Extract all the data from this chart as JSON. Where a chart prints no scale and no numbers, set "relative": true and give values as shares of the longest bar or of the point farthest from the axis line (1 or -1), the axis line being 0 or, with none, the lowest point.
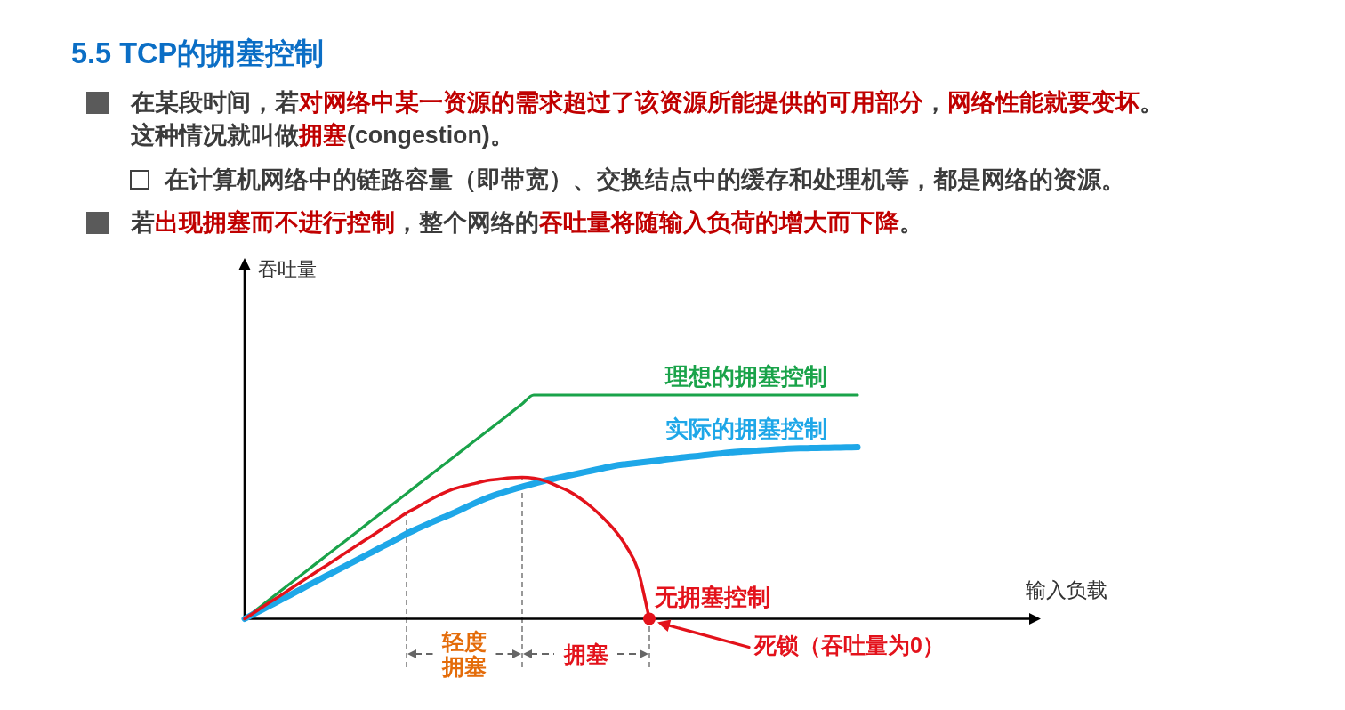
{
  "chart_data": {
    "type": "line",
    "title": "5.5 TCP的拥塞控制",
    "annotations": [
      "在某段时间，若**对网络中某一资源的需求超过了该资源所能提供的可用部分**，**网络性能就要变坏**。这种情况就叫做**拥塞**(congestion)。",
      "在计算机网络中的链路容量（即带宽）、交换结点中的缓存和处理机等，都是网络的资源。",
      "若**出现拥塞而不进行控制**，整个网络的**吞吐量将随输入负荷的增大而下降**。",
      "吞吐量",
      "输入负载",
      "轻度拥塞",
      "拥塞",
      "死锁（吞吐量为0）"
    ],
    "relative": true,
    "categories": [
      null,
      null,
      null,
      null,
      null,
      null,
      null,
      null,
      null,
      null,
      null,
      null,
      null,
      null,
      null,
      null,
      null,
      null,
      null,
      null,
      null,
      null,
      null,
      null,
      null,
      null,
      null,
      null,
      null,
      null,
      null,
      null,
      null,
      null,
      null,
      null,
      null,
      null,
      null,
      null,
      null,
      null,
      null,
      null,
      null,
      null,
      null,
      null,
      null,
      null,
      null,
      null,
      null,
      null
    ],
    "series": [
      {
        "name": "理想的拥塞控制",
        "color": "#1aa34a",
        "values": [
          0,
          0.04,
          0.08,
          0.12,
          0.16,
          0.2,
          0.24,
          0.28,
          0.32,
          0.36,
          0.4,
          0.44,
          0.48,
          0.52,
          0.56,
          0.6,
          0.64,
          0.68,
          0.72,
          0.76,
          0.8,
          0.84,
          0.88,
          0.92,
          0.96,
          1,
          1,
          1,
          1,
          1,
          1,
          1,
          1,
          1,
          1,
          1,
          1,
          1,
          1,
          1,
          1,
          1,
          1,
          1,
          1,
          1,
          1,
          1,
          1,
          1,
          1,
          1,
          1,
          1
        ]
      },
      {
        "name": "实际的拥塞控制",
        "color": "#1ea7e8",
        "values": [
          0,
          0.027,
          0.054,
          0.081,
          0.108,
          0.136,
          0.163,
          0.19,
          0.217,
          0.244,
          0.271,
          0.298,
          0.325,
          0.352,
          0.38,
          0.404,
          0.427,
          0.449,
          0.471,
          0.495,
          0.519,
          0.541,
          0.559,
          0.575,
          0.59,
          0.604,
          0.618,
          0.629,
          0.64,
          0.651,
          0.662,
          0.673,
          0.684,
          0.691,
          0.697,
          0.703,
          0.709,
          0.716,
          0.722,
          0.727,
          0.733,
          0.738,
          0.744,
          0.748,
          0.751,
          0.754,
          0.757,
          0.76,
          0.762,
          0.763,
          0.764,
          0.765,
          0.766,
          0.767
        ]
      },
      {
        "name": "无拥塞控制",
        "color": "#e3121b",
        "values": [
          0,
          0.034,
          0.068,
          0.101,
          0.135,
          0.169,
          0.203,
          0.236,
          0.27,
          0.304,
          0.338,
          0.371,
          0.405,
          0.439,
          0.473,
          0.501,
          0.531,
          0.557,
          0.579,
          0.594,
          0.606,
          0.618,
          0.624,
          0.63,
          0.632,
          0.628,
          0.616,
          0.594,
          0.571,
          0.539,
          0.499,
          0.451,
          0.396,
          0.324,
          0.221,
          0,
          null,
          null,
          null,
          null,
          null,
          null,
          null,
          null,
          null,
          null,
          null,
          null,
          null,
          null,
          null,
          null,
          null,
          null
        ]
      }
    ]
  }
}
